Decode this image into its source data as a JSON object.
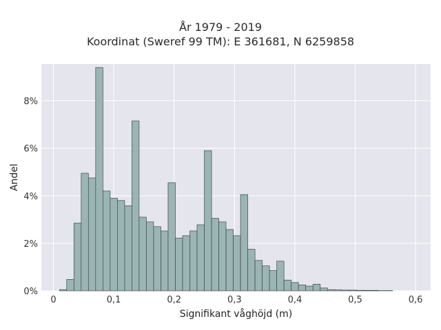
{
  "chart_data": {
    "type": "bar",
    "title": "År 1979 - 2019",
    "subtitle": "Koordinat (Sweref 99 TM): E 361681, N 6259858",
    "xlabel": "Signifikant våghöjd (m)",
    "ylabel": "Andel",
    "xlim": [
      -0.02,
      0.625
    ],
    "ylim": [
      0,
      0.0955
    ],
    "xticks": [
      0,
      0.1,
      0.2,
      0.3,
      0.4,
      0.5,
      0.6
    ],
    "xtick_labels": [
      "0",
      "0,1",
      "0,2",
      "0,3",
      "0,4",
      "0,5",
      "0,6"
    ],
    "yticks": [
      0,
      0.02,
      0.04,
      0.06,
      0.08
    ],
    "ytick_labels": [
      "0%",
      "2%",
      "4%",
      "6%",
      "8%"
    ],
    "grid": true,
    "bin_width": 0.012,
    "bin_start": 0.01,
    "values": [
      0.0005,
      0.0048,
      0.0285,
      0.0495,
      0.0475,
      0.094,
      0.042,
      0.039,
      0.038,
      0.0358,
      0.0715,
      0.031,
      0.029,
      0.027,
      0.0252,
      0.0455,
      0.0222,
      0.0232,
      0.0252,
      0.0278,
      0.059,
      0.0305,
      0.029,
      0.0258,
      0.0232,
      0.0405,
      0.0175,
      0.0128,
      0.0105,
      0.0085,
      0.0125,
      0.0045,
      0.0035,
      0.0025,
      0.002,
      0.0028,
      0.0012,
      0.0005,
      0.0004,
      0.0003,
      0.0003,
      0.0002,
      0.0002,
      0.0002,
      0.0001,
      0.0001
    ],
    "colors": {
      "bar_fill": "#9bb4b4",
      "bar_stroke": "#3d4a4a",
      "plot_background": "#e5e5ee",
      "grid": "#ffffff"
    }
  }
}
